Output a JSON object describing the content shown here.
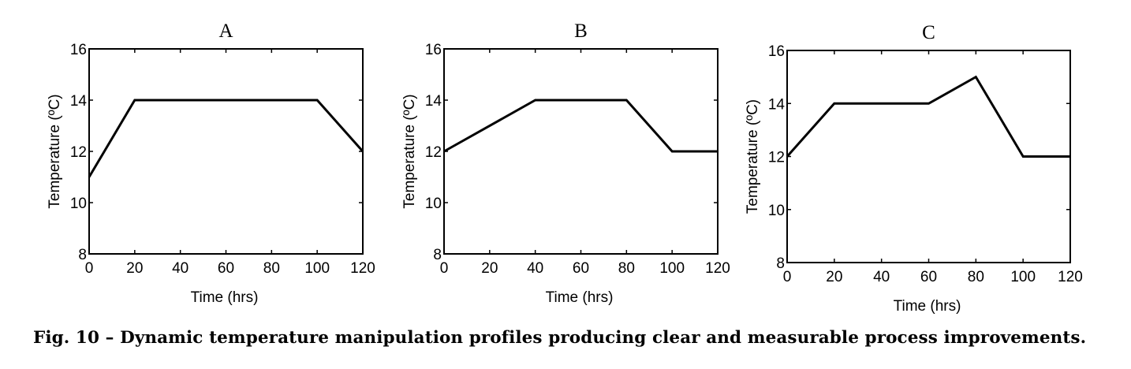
{
  "caption": "Fig. 10 – Dynamic temperature manipulation profiles producing clear and measurable process improvements.",
  "chart_data": [
    {
      "type": "line",
      "title": "A",
      "xlabel": "Time (hrs)",
      "ylabel": "Temperature (ºC)",
      "xlim": [
        0,
        120
      ],
      "ylim": [
        8,
        16
      ],
      "xticks": [
        0,
        20,
        40,
        60,
        80,
        100,
        120
      ],
      "yticks": [
        8,
        10,
        12,
        14,
        16
      ],
      "grid": false,
      "series": [
        {
          "x": [
            0,
            20,
            100,
            120
          ],
          "y": [
            11,
            14,
            14,
            12
          ]
        }
      ]
    },
    {
      "type": "line",
      "title": "B",
      "xlabel": "Time (hrs)",
      "ylabel": "Temperature (ºC)",
      "xlim": [
        0,
        120
      ],
      "ylim": [
        8,
        16
      ],
      "xticks": [
        0,
        20,
        40,
        60,
        80,
        100,
        120
      ],
      "yticks": [
        8,
        10,
        12,
        14,
        16
      ],
      "grid": false,
      "series": [
        {
          "x": [
            0,
            40,
            80,
            100,
            120
          ],
          "y": [
            12,
            14,
            14,
            12,
            12
          ]
        }
      ]
    },
    {
      "type": "line",
      "title": "C",
      "xlabel": "Time (hrs)",
      "ylabel": "Temperature (ºC)",
      "xlim": [
        0,
        120
      ],
      "ylim": [
        8,
        16
      ],
      "xticks": [
        0,
        20,
        40,
        60,
        80,
        100,
        120
      ],
      "yticks": [
        8,
        10,
        12,
        14,
        16
      ],
      "grid": false,
      "series": [
        {
          "x": [
            0,
            20,
            60,
            80,
            100,
            120
          ],
          "y": [
            12,
            14,
            14,
            15,
            12,
            12
          ]
        }
      ]
    }
  ]
}
